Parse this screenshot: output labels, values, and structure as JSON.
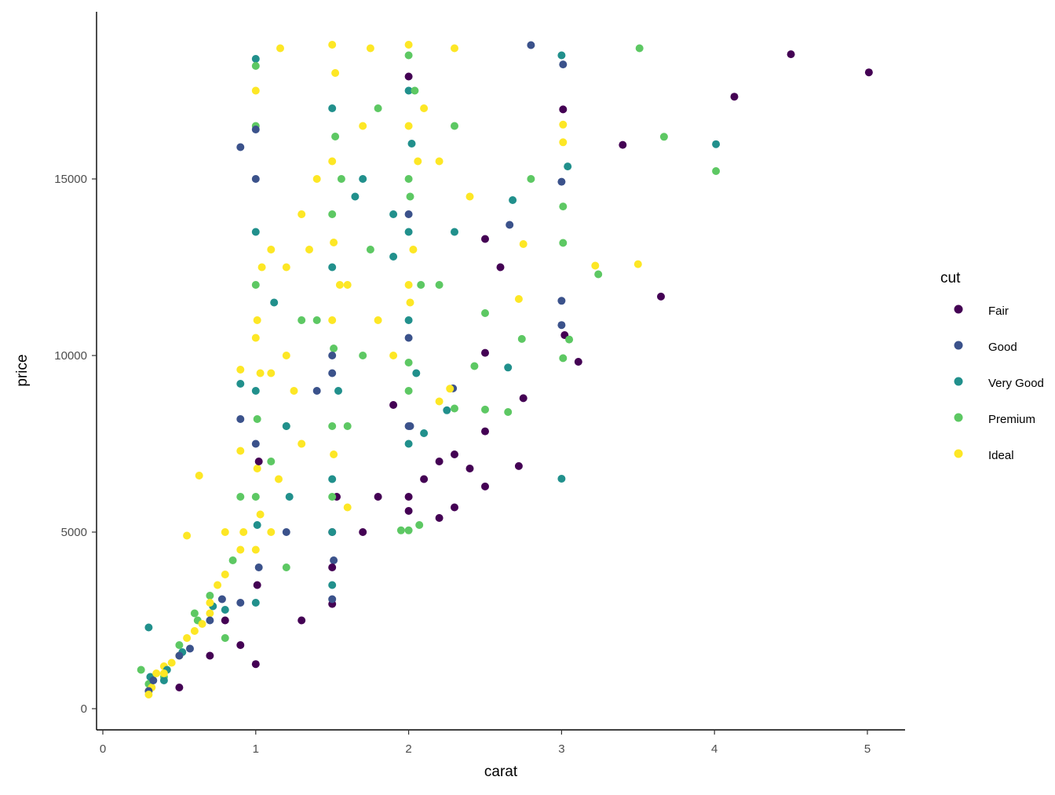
{
  "chart_data": {
    "type": "scatter",
    "title": "",
    "xlabel": "carat",
    "ylabel": "price",
    "xlim": [
      -0.04,
      5.26
    ],
    "ylim": [
      -500,
      19800
    ],
    "xticks": [
      "0",
      "1",
      "2",
      "3",
      "4",
      "5"
    ],
    "yticks": [
      "0",
      "5000",
      "10000",
      "15000"
    ],
    "grid": false,
    "legend": {
      "title": "cut",
      "placement": "right",
      "entries": [
        "Fair",
        "Good",
        "Very Good",
        "Premium",
        "Ideal"
      ],
      "colors": [
        "#440154",
        "#3B528B",
        "#21908C",
        "#5DC863",
        "#FDE725"
      ]
    },
    "point_format": [
      "carat",
      "price",
      "cut_index"
    ],
    "points": [
      [
        1.0,
        3000,
        2
      ],
      [
        1.0,
        4500,
        4
      ],
      [
        1.0,
        6000,
        3
      ],
      [
        1.0,
        7500,
        1
      ],
      [
        1.0,
        9000,
        2
      ],
      [
        1.0,
        10500,
        4
      ],
      [
        1.0,
        12000,
        3
      ],
      [
        1.0,
        13500,
        2
      ],
      [
        1.0,
        15000,
        1
      ],
      [
        1.0,
        16500,
        3
      ],
      [
        1.01,
        3500,
        0
      ],
      [
        1.01,
        5200,
        2
      ],
      [
        1.01,
        6800,
        4
      ],
      [
        1.01,
        8200,
        3
      ],
      [
        1.01,
        11000,
        4
      ],
      [
        1.02,
        4000,
        1
      ],
      [
        1.02,
        7000,
        0
      ],
      [
        1.03,
        5500,
        4
      ],
      [
        1.03,
        9500,
        4
      ],
      [
        1.04,
        12500,
        4
      ],
      [
        1.5,
        3500,
        2
      ],
      [
        1.5,
        5000,
        0
      ],
      [
        1.5,
        6500,
        2
      ],
      [
        1.5,
        8000,
        3
      ],
      [
        1.5,
        9500,
        1
      ],
      [
        1.5,
        11000,
        4
      ],
      [
        1.5,
        12500,
        2
      ],
      [
        1.5,
        14000,
        3
      ],
      [
        1.5,
        15500,
        4
      ],
      [
        1.5,
        17000,
        2
      ],
      [
        1.51,
        4200,
        1
      ],
      [
        1.51,
        7200,
        4
      ],
      [
        1.51,
        10200,
        3
      ],
      [
        1.51,
        13200,
        4
      ],
      [
        1.52,
        16200,
        3
      ],
      [
        1.52,
        18000,
        4
      ],
      [
        1.53,
        6000,
        0
      ],
      [
        1.54,
        9000,
        2
      ],
      [
        1.55,
        12000,
        4
      ],
      [
        1.56,
        15000,
        3
      ],
      [
        2.0,
        6000,
        0
      ],
      [
        2.0,
        7500,
        2
      ],
      [
        2.0,
        9000,
        3
      ],
      [
        2.0,
        10500,
        1
      ],
      [
        2.0,
        12000,
        4
      ],
      [
        2.0,
        13500,
        2
      ],
      [
        2.0,
        15000,
        3
      ],
      [
        2.0,
        16500,
        4
      ],
      [
        2.0,
        17500,
        2
      ],
      [
        2.0,
        18500,
        3
      ],
      [
        2.01,
        8000,
        1
      ],
      [
        2.01,
        11500,
        4
      ],
      [
        2.01,
        14500,
        3
      ],
      [
        2.02,
        16000,
        2
      ],
      [
        2.03,
        13000,
        4
      ],
      [
        2.04,
        17500,
        3
      ],
      [
        2.05,
        9500,
        2
      ],
      [
        2.06,
        15500,
        4
      ],
      [
        2.08,
        12000,
        3
      ],
      [
        2.1,
        17000,
        4
      ],
      [
        0.3,
        500,
        4
      ],
      [
        0.3,
        700,
        3
      ],
      [
        0.31,
        900,
        2
      ],
      [
        0.32,
        600,
        4
      ],
      [
        0.33,
        800,
        1
      ],
      [
        0.35,
        1000,
        4
      ],
      [
        0.4,
        900,
        3
      ],
      [
        0.4,
        1200,
        4
      ],
      [
        0.42,
        1100,
        2
      ],
      [
        0.45,
        1300,
        4
      ],
      [
        0.5,
        1500,
        4
      ],
      [
        0.5,
        1800,
        3
      ],
      [
        0.52,
        1600,
        2
      ],
      [
        0.55,
        2000,
        4
      ],
      [
        0.57,
        1700,
        1
      ],
      [
        0.6,
        2200,
        4
      ],
      [
        0.62,
        2500,
        3
      ],
      [
        0.65,
        2400,
        4
      ],
      [
        0.7,
        2700,
        4
      ],
      [
        0.7,
        3200,
        3
      ],
      [
        0.72,
        2900,
        2
      ],
      [
        0.75,
        3500,
        4
      ],
      [
        0.78,
        3100,
        1
      ],
      [
        0.8,
        3800,
        4
      ],
      [
        0.8,
        2500,
        0
      ],
      [
        0.85,
        4200,
        3
      ],
      [
        0.9,
        4500,
        4
      ],
      [
        0.9,
        3000,
        1
      ],
      [
        0.9,
        6000,
        3
      ],
      [
        0.92,
        5000,
        4
      ],
      [
        1.1,
        5000,
        4
      ],
      [
        1.1,
        7000,
        3
      ],
      [
        1.1,
        9500,
        4
      ],
      [
        1.12,
        11500,
        2
      ],
      [
        1.15,
        6500,
        4
      ],
      [
        1.2,
        8000,
        3
      ],
      [
        1.2,
        10000,
        4
      ],
      [
        1.2,
        12500,
        4
      ],
      [
        1.22,
        6000,
        2
      ],
      [
        1.25,
        9000,
        4
      ],
      [
        1.3,
        11000,
        3
      ],
      [
        1.3,
        7500,
        4
      ],
      [
        1.35,
        13000,
        4
      ],
      [
        1.4,
        9000,
        1
      ],
      [
        1.4,
        15000,
        4
      ],
      [
        1.6,
        8000,
        3
      ],
      [
        1.6,
        12000,
        4
      ],
      [
        1.65,
        14500,
        2
      ],
      [
        1.7,
        10000,
        3
      ],
      [
        1.7,
        16500,
        4
      ],
      [
        1.75,
        13000,
        3
      ],
      [
        1.8,
        11000,
        4
      ],
      [
        1.8,
        17000,
        3
      ],
      [
        1.9,
        14000,
        2
      ],
      [
        1.9,
        10000,
        4
      ],
      [
        2.2,
        12000,
        3
      ],
      [
        2.2,
        15500,
        4
      ],
      [
        2.3,
        13500,
        2
      ],
      [
        2.3,
        16500,
        3
      ],
      [
        2.4,
        14500,
        4
      ],
      [
        4.5,
        18531,
        0
      ],
      [
        5.01,
        18018,
        0
      ],
      [
        4.13,
        17329,
        0
      ],
      [
        3.4,
        15964,
        0
      ],
      [
        3.65,
        11668,
        0
      ],
      [
        3.11,
        9823,
        0
      ],
      [
        3.01,
        16970,
        0
      ],
      [
        3.02,
        10577,
        0
      ],
      [
        2.5,
        10076,
        0
      ],
      [
        2.75,
        8790,
        0
      ],
      [
        2.72,
        6870,
        0
      ],
      [
        2.5,
        6292,
        0
      ],
      [
        2.5,
        7854,
        0
      ],
      [
        2.0,
        5600,
        0
      ],
      [
        1.5,
        2964,
        0
      ],
      [
        1.0,
        1262,
        0
      ],
      [
        2.2,
        5400,
        0
      ],
      [
        2.3,
        5700,
        0
      ],
      [
        2.6,
        12500,
        0
      ],
      [
        2.5,
        13300,
        0
      ],
      [
        2.0,
        17900,
        0
      ],
      [
        1.7,
        5000,
        0
      ],
      [
        1.5,
        4000,
        0
      ],
      [
        1.3,
        2500,
        0
      ],
      [
        0.9,
        1800,
        0
      ],
      [
        0.5,
        600,
        0
      ],
      [
        0.7,
        1500,
        0
      ],
      [
        2.2,
        7000,
        0
      ],
      [
        2.3,
        7200,
        0
      ],
      [
        2.4,
        6800,
        0
      ],
      [
        1.8,
        6000,
        0
      ],
      [
        1.9,
        8600,
        0
      ],
      [
        2.1,
        6500,
        0
      ],
      [
        2.8,
        18788,
        1
      ],
      [
        3.01,
        18242,
        1
      ],
      [
        3.0,
        14920,
        1
      ],
      [
        3.0,
        11548,
        1
      ],
      [
        3.0,
        10863,
        1
      ],
      [
        2.66,
        13700,
        1
      ],
      [
        2.29,
        9068,
        1
      ],
      [
        1.0,
        16400,
        1
      ],
      [
        0.9,
        8200,
        1
      ],
      [
        0.9,
        15900,
        1
      ],
      [
        1.5,
        3100,
        1
      ],
      [
        2.0,
        8000,
        1
      ],
      [
        1.2,
        5000,
        1
      ],
      [
        0.5,
        1500,
        1
      ],
      [
        0.3,
        500,
        1
      ],
      [
        0.7,
        2500,
        1
      ],
      [
        1.5,
        10000,
        1
      ],
      [
        2.0,
        14000,
        1
      ],
      [
        4.01,
        15984,
        2
      ],
      [
        3.04,
        15354,
        2
      ],
      [
        2.68,
        14400,
        2
      ],
      [
        3.0,
        6512,
        2
      ],
      [
        2.65,
        9660,
        2
      ],
      [
        2.25,
        8450,
        2
      ],
      [
        1.0,
        18400,
        2
      ],
      [
        0.9,
        9200,
        2
      ],
      [
        0.3,
        2300,
        2
      ],
      [
        1.9,
        12800,
        2
      ],
      [
        3.0,
        18500,
        2
      ],
      [
        1.5,
        5000,
        2
      ],
      [
        1.2,
        8000,
        2
      ],
      [
        0.8,
        2800,
        2
      ],
      [
        0.4,
        800,
        2
      ],
      [
        2.1,
        7800,
        2
      ],
      [
        1.7,
        15000,
        2
      ],
      [
        2.0,
        11000,
        2
      ],
      [
        3.51,
        18701,
        3
      ],
      [
        3.67,
        16193,
        3
      ],
      [
        4.01,
        15223,
        3
      ],
      [
        3.24,
        12300,
        3
      ],
      [
        3.01,
        14220,
        3
      ],
      [
        3.01,
        13190,
        3
      ],
      [
        3.01,
        9925,
        3
      ],
      [
        3.05,
        10453,
        3
      ],
      [
        2.74,
        10470,
        3
      ],
      [
        2.65,
        8400,
        3
      ],
      [
        2.5,
        8470,
        3
      ],
      [
        2.43,
        9700,
        3
      ],
      [
        2.0,
        5050,
        3
      ],
      [
        1.95,
        5050,
        3
      ],
      [
        2.07,
        5200,
        3
      ],
      [
        2.3,
        8500,
        3
      ],
      [
        1.0,
        18200,
        3
      ],
      [
        0.8,
        2000,
        3
      ],
      [
        0.25,
        1100,
        3
      ],
      [
        0.6,
        2700,
        3
      ],
      [
        1.5,
        6000,
        3
      ],
      [
        2.8,
        15000,
        3
      ],
      [
        2.5,
        11200,
        3
      ],
      [
        2.0,
        9800,
        3
      ],
      [
        1.4,
        11000,
        3
      ],
      [
        1.2,
        4000,
        3
      ],
      [
        3.5,
        12587,
        4
      ],
      [
        3.22,
        12545,
        4
      ],
      [
        2.75,
        13156,
        4
      ],
      [
        2.72,
        11600,
        4
      ],
      [
        3.01,
        16538,
        4
      ],
      [
        3.01,
        16037,
        4
      ],
      [
        2.2,
        8700,
        4
      ],
      [
        2.27,
        9061,
        4
      ],
      [
        1.16,
        18700,
        4
      ],
      [
        1.0,
        17500,
        4
      ],
      [
        0.9,
        9600,
        4
      ],
      [
        0.63,
        6600,
        4
      ],
      [
        0.55,
        4900,
        4
      ],
      [
        0.3,
        400,
        4
      ],
      [
        0.4,
        1000,
        4
      ],
      [
        0.7,
        3000,
        4
      ],
      [
        1.5,
        18800,
        4
      ],
      [
        2.0,
        18800,
        4
      ],
      [
        1.1,
        13000,
        4
      ],
      [
        0.9,
        7300,
        4
      ],
      [
        1.6,
        5700,
        4
      ],
      [
        1.3,
        14000,
        4
      ],
      [
        0.8,
        5000,
        4
      ],
      [
        1.75,
        18700,
        4
      ],
      [
        2.3,
        18700,
        4
      ]
    ]
  }
}
